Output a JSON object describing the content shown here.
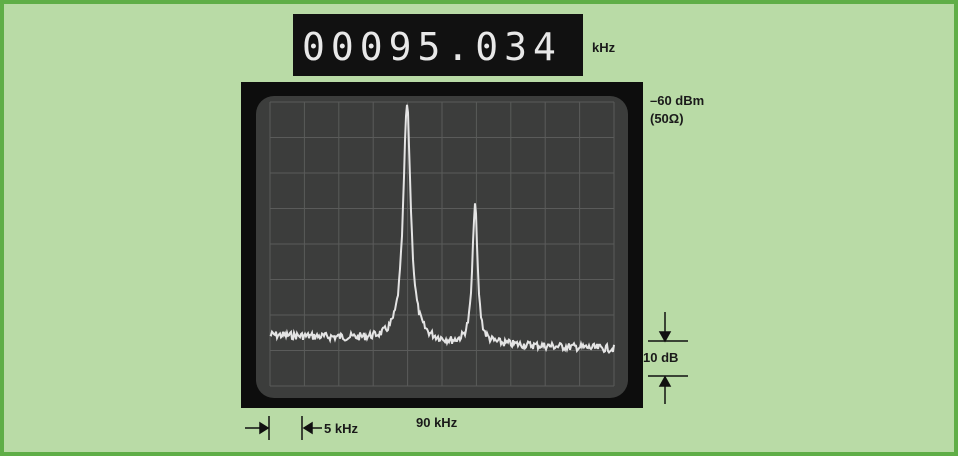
{
  "display": {
    "reading": "00095.034",
    "unit": "kHz"
  },
  "annotations": {
    "reference_level": "–60 dBm",
    "impedance": "(50Ω)",
    "vertical_scale": "10 dB",
    "horizontal_scale": "5 kHz",
    "center_frequency": "90 kHz"
  }
}
